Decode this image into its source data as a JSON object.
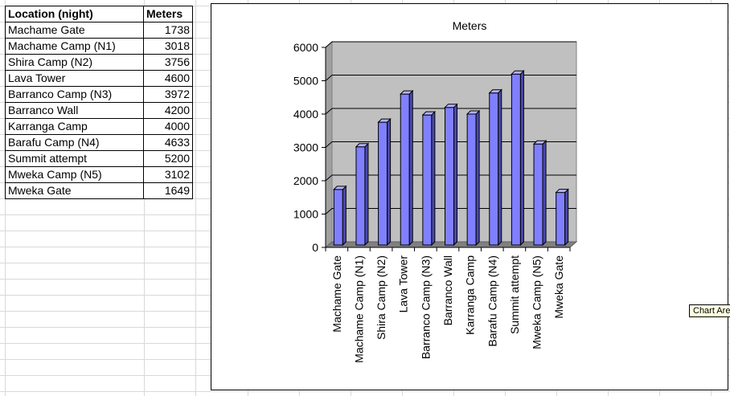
{
  "table": {
    "headers": [
      "Location (night)",
      "Meters"
    ],
    "rows": [
      [
        "Machame Gate",
        "1738"
      ],
      [
        "Machame Camp (N1)",
        "3018"
      ],
      [
        "Shira Camp (N2)",
        "3756"
      ],
      [
        "Lava Tower",
        "4600"
      ],
      [
        "Barranco Camp (N3)",
        "3972"
      ],
      [
        "Barranco Wall",
        "4200"
      ],
      [
        "Karranga Camp",
        "4000"
      ],
      [
        "Barafu Camp (N4)",
        "4633"
      ],
      [
        "Summit attempt",
        "5200"
      ],
      [
        "Mweka Camp (N5)",
        "3102"
      ],
      [
        "Mweka Gate",
        "1649"
      ]
    ]
  },
  "chart_data": {
    "type": "bar",
    "title": "Meters",
    "categories": [
      "Machame Gate",
      "Machame Camp (N1)",
      "Shira Camp (N2)",
      "Lava Tower",
      "Barranco Camp (N3)",
      "Barranco Wall",
      "Karranga Camp",
      "Barafu Camp (N4)",
      "Summit attempt",
      "Mweka Camp (N5)",
      "Mweka Gate"
    ],
    "series": [
      {
        "values": [
          1738,
          3018,
          3756,
          4600,
          3972,
          4200,
          4000,
          4633,
          5200,
          3102,
          1649
        ]
      }
    ],
    "yticks": [
      "0",
      "1000",
      "2000",
      "3000",
      "4000",
      "5000",
      "6000"
    ],
    "ylim": [
      0,
      6000
    ],
    "grid": true,
    "bar_color": "#8080ff",
    "bar_side_color": "#4a4ab0",
    "bar_top_color": "#b3b3ff",
    "plot_background": "#c0c0c0"
  },
  "tooltip": "Chart Area"
}
